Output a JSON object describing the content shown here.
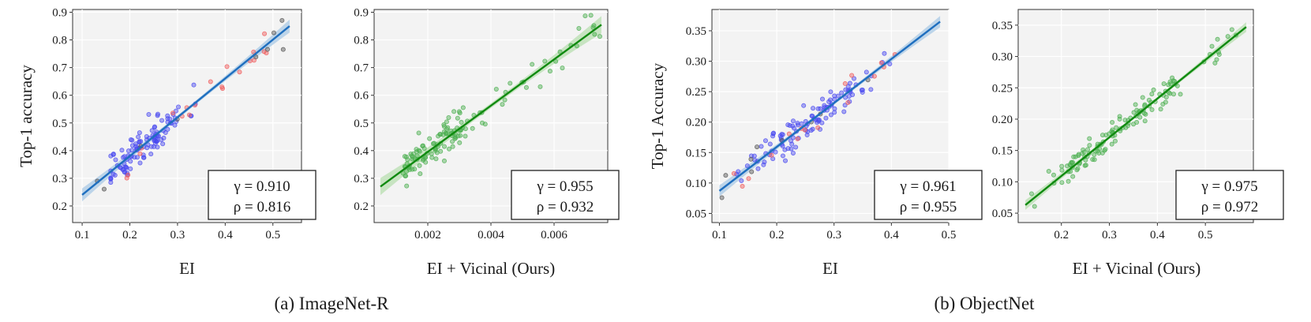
{
  "figure": {
    "captions": [
      "(a) ImageNet-R",
      "(b) ObjectNet"
    ],
    "colors": {
      "plot_bg": "#f3f3f3",
      "blue_points": "#4a4af0",
      "red_points": "#f05a5a",
      "gray_points": "#555555",
      "green_points": "#4caf50",
      "blue_line": "#1f6fbf",
      "green_line": "#108a10",
      "blue_band": "#a9c9e6",
      "green_band": "#b8dfb0"
    }
  },
  "chart_data": [
    {
      "type": "scatter",
      "panel": "imagenet-r-ei",
      "xlabel": "EI",
      "ylabel": "Top-1 accuracy",
      "xlim": [
        0.08,
        0.56
      ],
      "ylim": [
        0.14,
        0.91
      ],
      "xticks": [
        0.1,
        0.2,
        0.3,
        0.4,
        0.5
      ],
      "xtick_labels": [
        "0.1",
        "0.2",
        "0.3",
        "0.4",
        "0.5"
      ],
      "yticks": [
        0.2,
        0.3,
        0.4,
        0.5,
        0.6,
        0.7,
        0.8,
        0.9
      ],
      "ytick_labels": [
        "0.2",
        "0.3",
        "0.4",
        "0.5",
        "0.6",
        "0.7",
        "0.8",
        "0.9"
      ],
      "stats": {
        "gamma": "γ = 0.910",
        "rho": "ρ = 0.816"
      },
      "fit": {
        "x": [
          0.1,
          0.535
        ],
        "y": [
          0.24,
          0.85
        ]
      },
      "band_width": 0.015,
      "line_color_key": "blue_line",
      "band_color_key": "blue_band",
      "generator": {
        "type": "mixed",
        "seed": 11,
        "n_blue": 110,
        "n_red": 20,
        "n_gray": 9,
        "blue_range": [
          0.16,
          0.36
        ],
        "blue_center": 0.23,
        "blue_spread": 0.045,
        "red_range": [
          0.18,
          0.5
        ],
        "gray_range": [
          0.1,
          0.54
        ],
        "noise": 0.035,
        "slope": 1.4,
        "intercept": 0.1
      }
    },
    {
      "type": "scatter",
      "panel": "imagenet-r-vicinal",
      "xlabel": "EI + Vicinal (Ours)",
      "ylabel": "",
      "xlim": [
        0.0003,
        0.0077
      ],
      "ylim": [
        0.14,
        0.91
      ],
      "xticks": [
        0.002,
        0.004,
        0.006
      ],
      "xtick_labels": [
        "0.002",
        "0.004",
        "0.006"
      ],
      "yticks": [
        0.2,
        0.3,
        0.4,
        0.5,
        0.6,
        0.7,
        0.8,
        0.9
      ],
      "ytick_labels": [
        "0.2",
        "0.3",
        "0.4",
        "0.5",
        "0.6",
        "0.7",
        "0.8",
        "0.9"
      ],
      "stats": {
        "gamma": "γ = 0.955",
        "rho": "ρ = 0.932"
      },
      "fit": {
        "x": [
          0.0005,
          0.0075
        ],
        "y": [
          0.27,
          0.855
        ]
      },
      "band_width": 0.02,
      "line_color_key": "green_line",
      "band_color_key": "green_band",
      "generator": {
        "type": "green",
        "seed": 23,
        "n": 130,
        "dense_range": [
          0.0012,
          0.0032
        ],
        "sparse_range": [
          0.0032,
          0.0075
        ],
        "noise": 0.03
      }
    },
    {
      "type": "scatter",
      "panel": "objectnet-ei",
      "xlabel": "EI",
      "ylabel": "Top-1 Accuracy",
      "xlim": [
        0.087,
        0.5
      ],
      "ylim": [
        0.035,
        0.385
      ],
      "xticks": [
        0.1,
        0.2,
        0.3,
        0.4,
        0.5
      ],
      "xtick_labels": [
        "0.1",
        "0.2",
        "0.3",
        "0.4",
        "0.5"
      ],
      "yticks": [
        0.05,
        0.1,
        0.15,
        0.2,
        0.25,
        0.3,
        0.35
      ],
      "ytick_labels": [
        "0.05",
        "0.10",
        "0.15",
        "0.20",
        "0.25",
        "0.30",
        "0.35"
      ],
      "stats": {
        "gamma": "γ = 0.961",
        "rho": "ρ = 0.955"
      },
      "fit": {
        "x": [
          0.1,
          0.485
        ],
        "y": [
          0.087,
          0.365
        ]
      },
      "band_width": 0.006,
      "line_color_key": "blue_line",
      "band_color_key": "blue_band",
      "generator": {
        "type": "mixed",
        "seed": 37,
        "n_blue": 115,
        "n_red": 16,
        "n_gray": 9,
        "blue_range": [
          0.13,
          0.42
        ],
        "blue_center": 0.26,
        "blue_spread": 0.06,
        "red_range": [
          0.12,
          0.43
        ],
        "gray_range": [
          0.1,
          0.48
        ],
        "noise": 0.014,
        "slope": 0.722,
        "intercept": 0.0148
      }
    },
    {
      "type": "scatter",
      "panel": "objectnet-vicinal",
      "xlabel": "EI + Vicinal (Ours)",
      "ylabel": "",
      "xlim": [
        0.11,
        0.6
      ],
      "ylim": [
        0.035,
        0.375
      ],
      "xticks": [
        0.2,
        0.3,
        0.4,
        0.5
      ],
      "xtick_labels": [
        "0.2",
        "0.3",
        "0.4",
        "0.5"
      ],
      "yticks": [
        0.05,
        0.1,
        0.15,
        0.2,
        0.25,
        0.3,
        0.35
      ],
      "ytick_labels": [
        "0.05",
        "0.10",
        "0.15",
        "0.20",
        "0.25",
        "0.30",
        "0.35"
      ],
      "stats": {
        "gamma": "γ = 0.975",
        "rho": "ρ = 0.972"
      },
      "fit": {
        "x": [
          0.125,
          0.585
        ],
        "y": [
          0.063,
          0.347
        ]
      },
      "band_width": 0.005,
      "line_color_key": "green_line",
      "band_color_key": "green_band",
      "generator": {
        "type": "green",
        "seed": 51,
        "n": 135,
        "dense_range": [
          0.2,
          0.45
        ],
        "sparse_range": [
          0.13,
          0.59
        ],
        "noise": 0.011
      }
    }
  ]
}
